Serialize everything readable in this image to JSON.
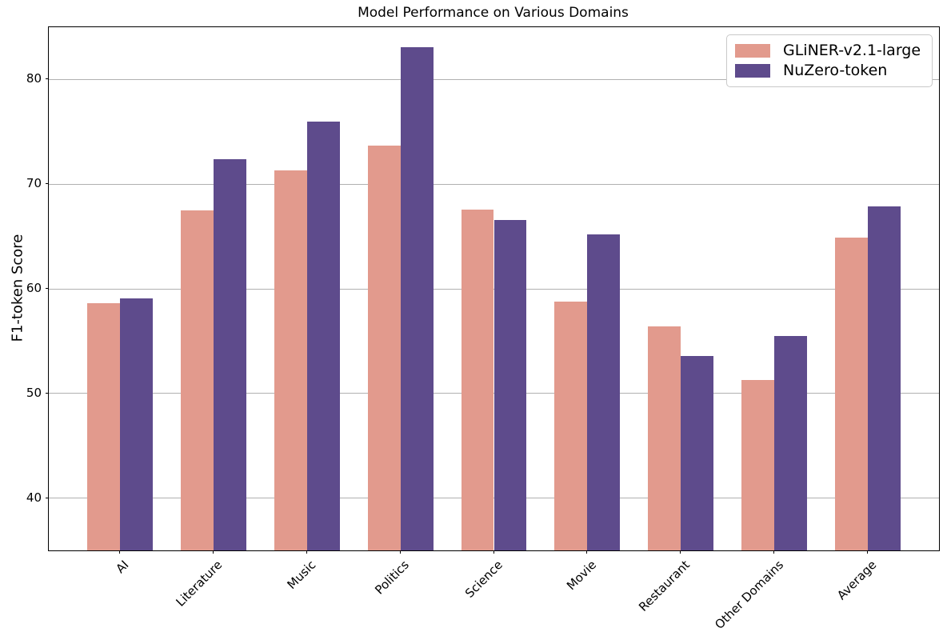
{
  "chart_data": {
    "type": "bar",
    "title": "Model Performance on Various Domains",
    "xlabel": "",
    "ylabel": "F1-token Score",
    "categories": [
      "AI",
      "Literature",
      "Music",
      "Politics",
      "Science",
      "Movie",
      "Restaurant",
      "Other Domains",
      "Average"
    ],
    "series": [
      {
        "name": "GLiNER-v2.1-large",
        "color": "#e29a8d",
        "values": [
          58.6,
          67.5,
          71.3,
          73.7,
          67.6,
          58.8,
          56.4,
          51.3,
          64.9
        ]
      },
      {
        "name": "NuZero-token",
        "color": "#5e4b8c",
        "values": [
          59.1,
          72.4,
          76.0,
          83.1,
          66.6,
          65.2,
          53.6,
          55.5,
          67.9
        ]
      }
    ],
    "ylim": [
      35,
      85
    ],
    "yticks": [
      40,
      50,
      60,
      70,
      80
    ],
    "grid": "horizontal",
    "legend_position": "upper right",
    "bar_width_fraction": 0.35
  },
  "colors": {
    "background": "#ffffff",
    "grid": "#b0b0b0",
    "axis": "#000000",
    "legend_border": "#c9c9c9",
    "text": "#000000"
  }
}
